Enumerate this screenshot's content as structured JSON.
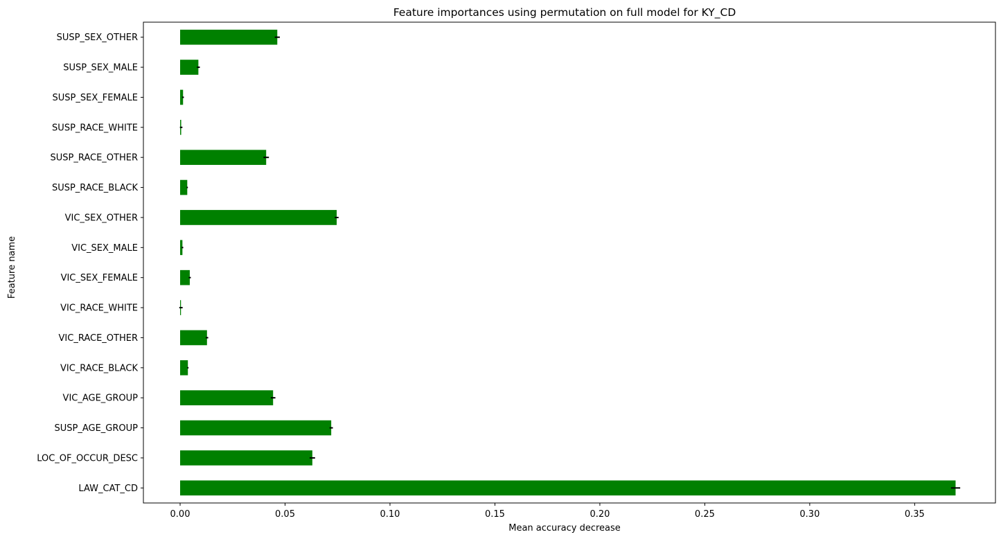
{
  "chart_data": {
    "type": "bar",
    "orientation": "horizontal",
    "title": "Feature importances using permutation on full model for KY_CD",
    "xlabel": "Mean accuracy decrease",
    "ylabel": "Feature name",
    "categories": [
      "LAW_CAT_CD",
      "LOC_OF_OCCUR_DESC",
      "SUSP_AGE_GROUP",
      "VIC_AGE_GROUP",
      "VIC_RACE_BLACK",
      "VIC_RACE_OTHER",
      "VIC_RACE_WHITE",
      "VIC_SEX_FEMALE",
      "VIC_SEX_MALE",
      "VIC_SEX_OTHER",
      "SUSP_RACE_BLACK",
      "SUSP_RACE_OTHER",
      "SUSP_RACE_WHITE",
      "SUSP_SEX_FEMALE",
      "SUSP_SEX_MALE",
      "SUSP_SEX_OTHER"
    ],
    "values": [
      0.3695,
      0.063,
      0.072,
      0.0443,
      0.0037,
      0.0128,
      0.0004,
      0.0046,
      0.0011,
      0.0746,
      0.0034,
      0.041,
      0.0005,
      0.0014,
      0.0087,
      0.0463
    ],
    "errors": [
      0.0022,
      0.0013,
      0.0008,
      0.0011,
      0.0003,
      0.0006,
      0.0008,
      0.0005,
      0.0004,
      0.0009,
      0.0003,
      0.0013,
      0.0006,
      0.0004,
      0.0007,
      0.0012
    ],
    "xlim": [
      -0.0175,
      0.3885
    ],
    "xticks": [
      "0.00",
      "0.05",
      "0.10",
      "0.15",
      "0.20",
      "0.25",
      "0.30",
      "0.35"
    ],
    "xtick_values": [
      0,
      0.05,
      0.1,
      0.15,
      0.2,
      0.25,
      0.3,
      0.35
    ],
    "bar_color": "#008000",
    "error_color": "#000000",
    "grid": false,
    "legend": "none"
  }
}
